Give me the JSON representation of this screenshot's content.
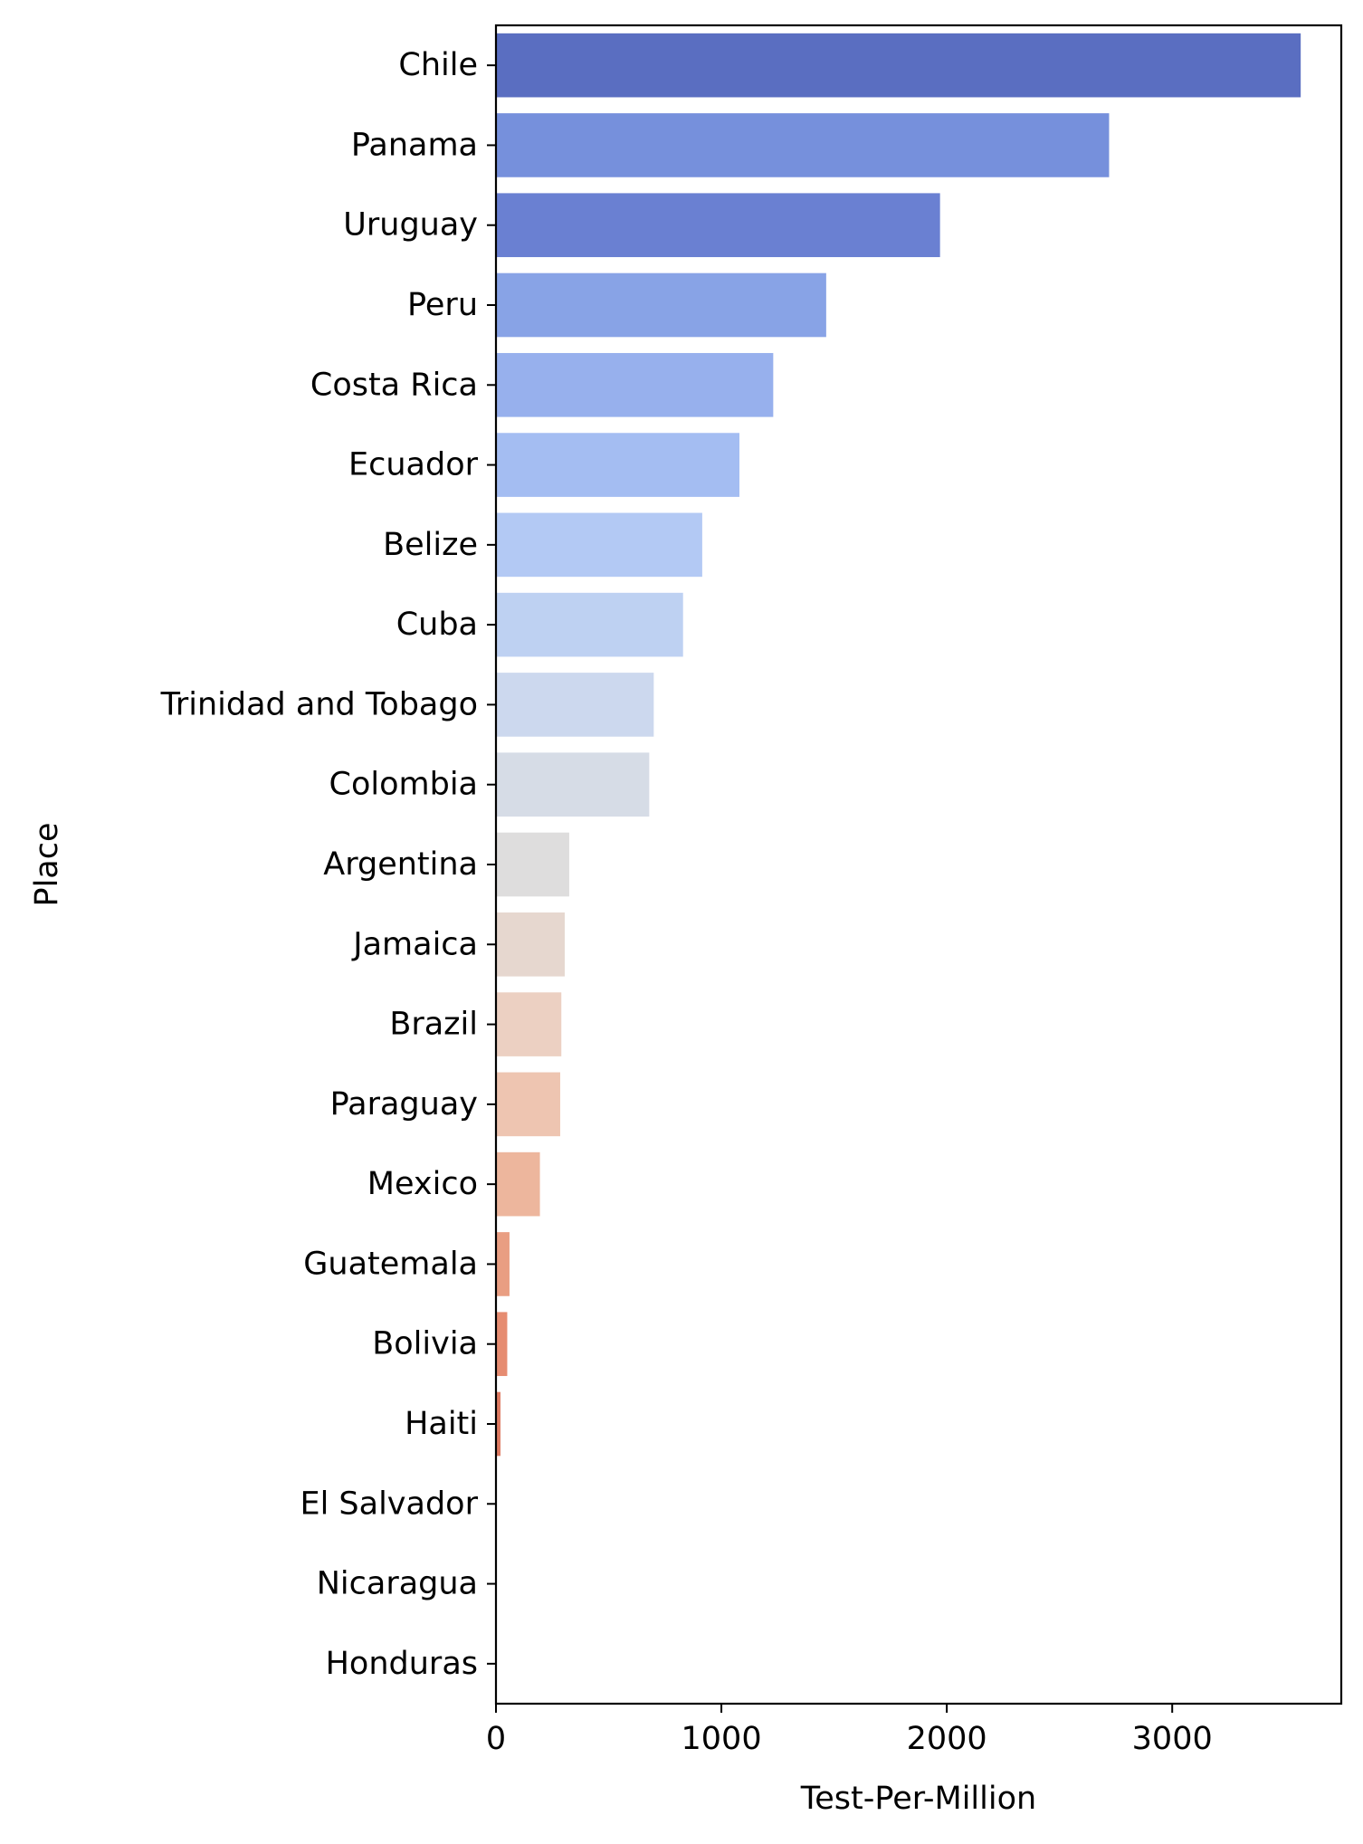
{
  "chart_data": {
    "type": "bar",
    "orientation": "horizontal",
    "xlabel": "Test-Per-Million",
    "ylabel": "Place",
    "xlim": [
      0,
      3750
    ],
    "xticks": [
      0,
      1000,
      2000,
      3000
    ],
    "grid": false,
    "categories": [
      "Chile",
      "Panama",
      "Uruguay",
      "Peru",
      "Costa Rica",
      "Ecuador",
      "Belize",
      "Cuba",
      "Trinidad and Tobago",
      "Colombia",
      "Argentina",
      "Jamaica",
      "Brazil",
      "Paraguay",
      "Mexico",
      "Guatemala",
      "Bolivia",
      "Haiti",
      "El Salvador",
      "Nicaragua",
      "Honduras"
    ],
    "values": [
      3570,
      2720,
      1970,
      1465,
      1230,
      1080,
      915,
      830,
      700,
      680,
      325,
      305,
      290,
      285,
      195,
      60,
      50,
      20,
      0,
      0,
      0
    ],
    "colors": [
      "#5a6ec1",
      "#7690dc",
      "#6a80d2",
      "#88a3e6",
      "#97b0ed",
      "#a4bdf2",
      "#b3c9f4",
      "#bed1f2",
      "#ccd8ee",
      "#d6dce6",
      "#dedddd",
      "#e6d7cf",
      "#ecd0c2",
      "#eec5b1",
      "#edb69d",
      "#e99e82",
      "#e68c71",
      "#de7a62",
      "#d4665a",
      "#c85350",
      "#bb3d46"
    ]
  }
}
